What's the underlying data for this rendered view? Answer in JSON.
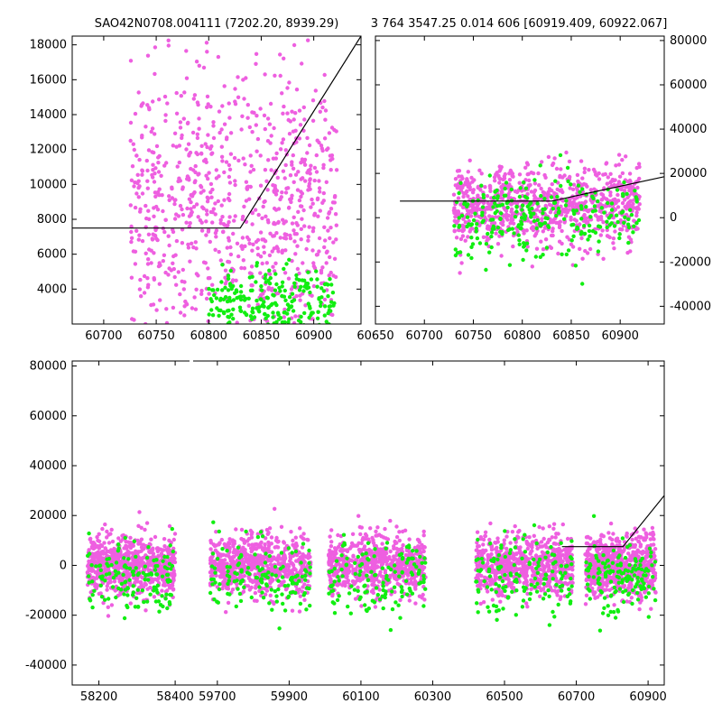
{
  "figure": {
    "title_left": "SAO42N0708.004111 (7202.20, 8939.29)",
    "title_right": "3 764 3547.25 0.014 606 [60919.409, 60922.067]"
  },
  "colors": {
    "magenta": "#ee5fe0",
    "green": "#11ee11",
    "line": "#000000"
  },
  "chart_data": [
    {
      "type": "scatter",
      "panel": "top-left",
      "xlim": [
        60670,
        60945
      ],
      "ylim": [
        2000,
        18500
      ],
      "xticks": [
        60700,
        60750,
        60800,
        60850,
        60900
      ],
      "yticks": [
        4000,
        6000,
        8000,
        10000,
        12000,
        14000,
        16000,
        18000
      ],
      "grid": false,
      "series": [
        {
          "color": "magenta",
          "x_range": [
            60725,
            60922
          ],
          "y_center": 8500,
          "y_spread": 9000
        },
        {
          "color": "green",
          "x_range": [
            60800,
            60920
          ],
          "y_center": 3000,
          "y_spread": 2500
        },
        {
          "type": "line",
          "x": [
            60670,
            60830,
            60945
          ],
          "y": [
            7500,
            7500,
            18500
          ]
        }
      ]
    },
    {
      "type": "scatter",
      "panel": "top-right",
      "xlim": [
        60650,
        60945
      ],
      "ylim": [
        -48000,
        82000
      ],
      "xticks": [
        60650,
        60700,
        60750,
        60800,
        60850,
        60900
      ],
      "yticks": [
        -40000,
        -20000,
        0,
        20000,
        40000,
        60000,
        80000
      ],
      "grid": false,
      "series": [
        {
          "color": "magenta",
          "x_range": [
            60730,
            60920
          ],
          "y_center": 5000,
          "y_spread": 20000
        },
        {
          "color": "green",
          "x_range": [
            60730,
            60920
          ],
          "y_center": 0,
          "y_spread": 20000
        },
        {
          "type": "line",
          "x": [
            60675,
            60830,
            60945
          ],
          "y": [
            7500,
            7500,
            18500
          ]
        }
      ]
    },
    {
      "type": "scatter",
      "panel": "bottom",
      "ylim": [
        -48000,
        82000
      ],
      "yticks": [
        -40000,
        -20000,
        0,
        20000,
        40000,
        60000,
        80000
      ],
      "xtick_labels": [
        "58200",
        "58400",
        "59700",
        "59900",
        "60100",
        "60300",
        "60500",
        "60700",
        "60900"
      ],
      "grid": false,
      "segments": [
        {
          "xlim": [
            58130,
            58440
          ],
          "xticks": [
            58200,
            58400
          ]
        },
        {
          "xlim": [
            59630,
            60945
          ],
          "xticks": [
            59700,
            59900,
            60100,
            60300,
            60500,
            60700,
            60900
          ]
        }
      ],
      "series": [
        {
          "color": "magenta",
          "clusters_x": [
            [
              58170,
              58400
            ],
            [
              59680,
              59960
            ],
            [
              60010,
              60280
            ],
            [
              60420,
              60690
            ],
            [
              60725,
              60922
            ]
          ],
          "y_center": 0,
          "y_spread": 12000
        },
        {
          "color": "green",
          "clusters_x": [
            [
              58170,
              58400
            ],
            [
              59680,
              59960
            ],
            [
              60010,
              60280
            ],
            [
              60420,
              60690
            ],
            [
              60725,
              60922
            ]
          ],
          "y_center": -5000,
          "y_spread": 15000
        },
        {
          "type": "line",
          "x": [
            60660,
            60830,
            60945
          ],
          "y": [
            7500,
            7500,
            28000
          ]
        }
      ]
    }
  ]
}
